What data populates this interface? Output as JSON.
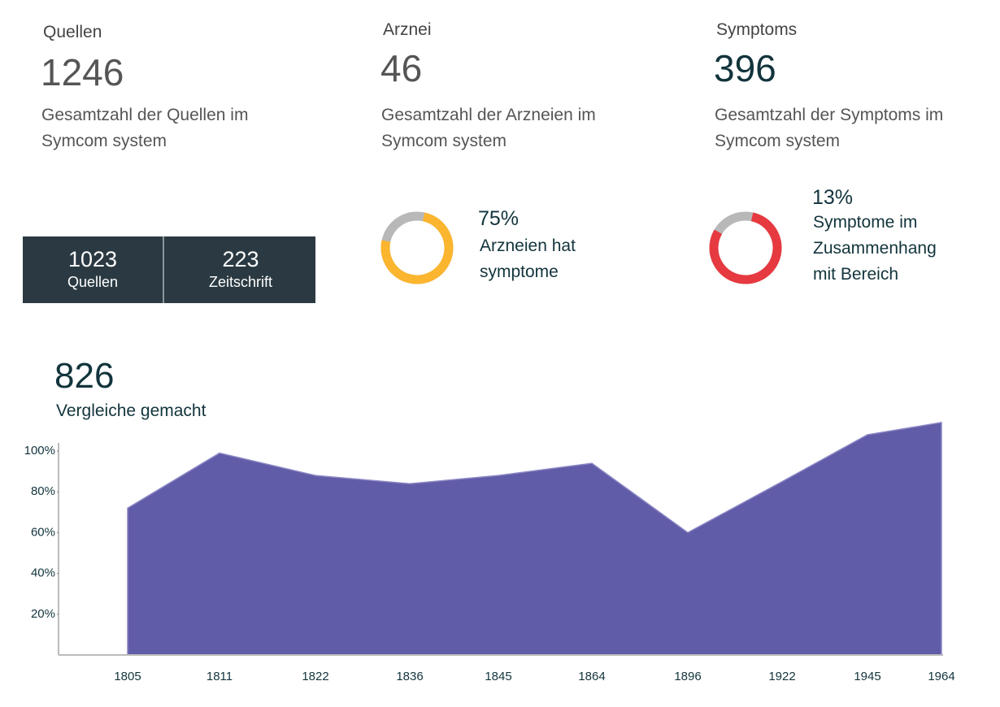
{
  "stats": [
    {
      "label": "Quellen",
      "value": 1246,
      "description": "Gesamtzahl der Quellen im Symcom system",
      "color": "#555555"
    },
    {
      "label": "Arznei",
      "value": 46,
      "description": "Gesamtzahl der Arzneien im Symcom system",
      "color": "#555555"
    },
    {
      "label": "Symptoms",
      "value": 396,
      "description": "Gesamtzahl der Symptoms im Symcom system",
      "color": "#12343c"
    }
  ],
  "breakdown": [
    {
      "value": 1023,
      "label": "Quellen"
    },
    {
      "value": 223,
      "label": "Zeitschrift"
    }
  ],
  "donuts": [
    {
      "value": 75,
      "value_label": "75%",
      "text": "Arzneien hat symptome",
      "ring": 75,
      "color": "#fbb52e"
    },
    {
      "value": 13,
      "value_label": "13%",
      "text": "Symptome im Zusammenhang mit Bereich",
      "ring": 80,
      "color": "#e63940"
    }
  ],
  "comparisons": {
    "value": 826,
    "label": "Vergleiche gemacht"
  },
  "chart_data": {
    "type": "area",
    "categories": [
      "1805",
      "1811",
      "1822",
      "1836",
      "1845",
      "1864",
      "1896",
      "1922",
      "1945",
      "1964"
    ],
    "values": [
      72,
      99,
      88,
      84,
      88,
      94,
      60,
      85,
      108,
      114
    ],
    "color": "#615ca8",
    "ylim": [
      0,
      104
    ],
    "yticks": [
      {
        "value": 20,
        "label": "20%"
      },
      {
        "value": 40,
        "label": "40%"
      },
      {
        "value": 60,
        "label": "60%"
      },
      {
        "value": 80,
        "label": "80%"
      },
      {
        "value": 100,
        "label": "100%"
      }
    ]
  }
}
